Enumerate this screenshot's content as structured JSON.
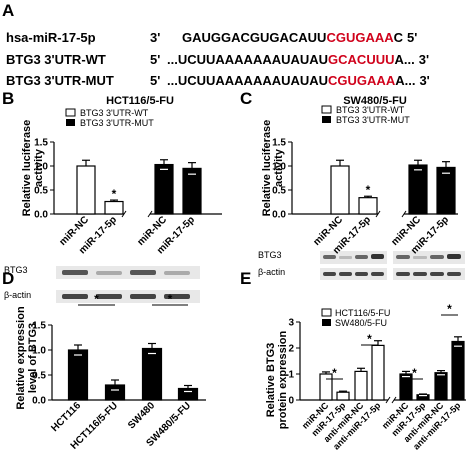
{
  "panels": {
    "A": "A",
    "B": "B",
    "C": "C",
    "D": "D",
    "E": "E"
  },
  "sequences": {
    "rows": [
      {
        "label": "hsa-miR-17-5p",
        "prime_left": "3'",
        "black_part": "GAUGGACGUGACAUU",
        "red_part": "CGUGAAA",
        "tail": "C",
        "prime_right": "5'"
      },
      {
        "label": "BTG3 3'UTR-WT",
        "prime_left": "5'",
        "black_part": "...UCUUAAAAAAAUAUAU",
        "red_part": "GCACUUU",
        "tail": "A...",
        "prime_right": "3'"
      },
      {
        "label": "BTG3 3'UTR-MUT",
        "prime_left": "5'",
        "black_part": "...UCUUAAAAAAAUAUAU",
        "red_part": "CGUGAAA",
        "tail": "A...",
        "prime_right": "3'"
      }
    ],
    "red_color": "#d0021b"
  },
  "chart_data": [
    {
      "panel": "B",
      "type": "bar",
      "title": "HCT116/5-FU",
      "ylabel": "Relative luciferase activity",
      "ylim": [
        0,
        1.5
      ],
      "yticks": [
        "0.0",
        "0.5",
        "1.0",
        "1.5"
      ],
      "legend": [
        "BTG3 3'UTR-WT",
        "BTG3 3'UTR-MUT"
      ],
      "categories": [
        "miR-NC",
        "miR-17-5p",
        "miR-NC",
        "miR-17-5p"
      ],
      "values": [
        1.0,
        0.26,
        1.03,
        0.95
      ],
      "errors": [
        0.12,
        0.03,
        0.1,
        0.12
      ],
      "fills": [
        "white",
        "white",
        "black",
        "black"
      ],
      "significance": "*"
    },
    {
      "panel": "C",
      "type": "bar",
      "title": "SW480/5-FU",
      "ylabel": "Relative luciferase activity",
      "ylim": [
        0,
        1.5
      ],
      "yticks": [
        "0.0",
        "0.5",
        "1.0",
        "1.5"
      ],
      "legend": [
        "BTG3 3'UTR-WT",
        "BTG3 3'UTR-MUT"
      ],
      "categories": [
        "miR-NC",
        "miR-17-5p",
        "miR-NC",
        "miR-17-5p"
      ],
      "values": [
        1.0,
        0.34,
        1.02,
        0.97
      ],
      "errors": [
        0.12,
        0.03,
        0.1,
        0.12
      ],
      "fills": [
        "white",
        "white",
        "black",
        "black"
      ],
      "significance": "*"
    },
    {
      "panel": "D",
      "type": "bar",
      "ylabel": "Relative expression level of BTG3",
      "blot_labels": [
        "BTG3",
        "β-actin"
      ],
      "ylim": [
        0,
        1.5
      ],
      "yticks": [
        "0.0",
        "0.5",
        "1.0",
        "1.5"
      ],
      "categories": [
        "HCT116",
        "HCT116/5-FU",
        "SW480",
        "SW480/5-FU"
      ],
      "values": [
        1.0,
        0.3,
        1.03,
        0.23
      ],
      "errors": [
        0.1,
        0.1,
        0.1,
        0.06
      ],
      "fills": [
        "black",
        "black",
        "black",
        "black"
      ],
      "significance": [
        "*",
        "*"
      ]
    },
    {
      "panel": "E",
      "type": "bar",
      "ylabel": "Relative BTG3 protein expression",
      "blot_labels": [
        "BTG3",
        "β-actin"
      ],
      "ylim": [
        0,
        3
      ],
      "yticks": [
        "0",
        "1",
        "2",
        "3"
      ],
      "legend": [
        "HCT116/5-FU",
        "SW480/5-FU"
      ],
      "categories": [
        "miR-NC",
        "miR-17-5p",
        "anti-miR-NC",
        "anti-miR-17-5p",
        "miR-NC",
        "miR-17-5p",
        "anti-miR-NC",
        "anti-miR-17-5p"
      ],
      "values": [
        1.0,
        0.3,
        1.1,
        2.1,
        1.0,
        0.2,
        1.05,
        2.25
      ],
      "errors": [
        0.08,
        0.04,
        0.12,
        0.18,
        0.1,
        0.03,
        0.08,
        0.18
      ],
      "fills": [
        "white",
        "white",
        "white",
        "white",
        "black",
        "black",
        "black",
        "black"
      ],
      "significance": [
        "*",
        "*",
        "*",
        "*"
      ]
    }
  ]
}
